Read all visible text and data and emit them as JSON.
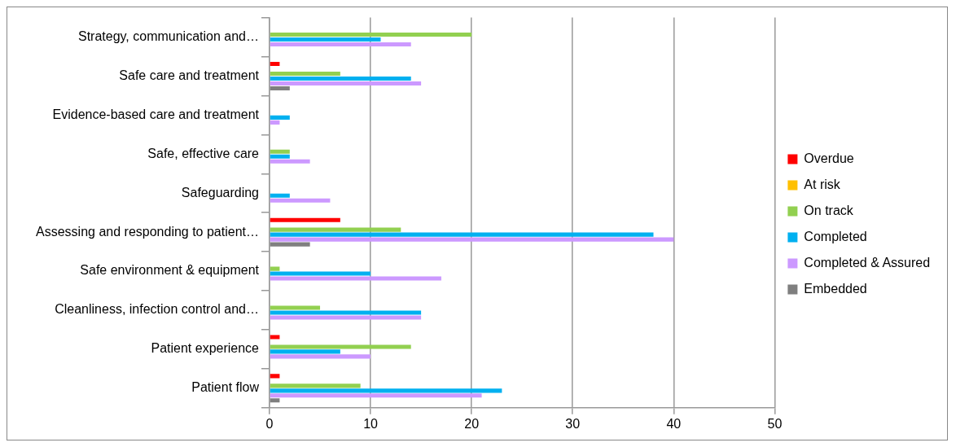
{
  "chart_data": {
    "type": "bar",
    "orientation": "horizontal",
    "categories": [
      "Strategy, communication and…",
      "Safe care and treatment",
      "Evidence-based care and treatment",
      "Safe, effective care",
      "Safeguarding",
      "Assessing and responding to patient…",
      "Safe environment & equipment",
      "Cleanliness, infection control and…",
      "Patient experience",
      "Patient flow"
    ],
    "series": [
      {
        "name": "Overdue",
        "color": "#ff0000",
        "values": [
          0,
          1,
          0,
          0,
          0,
          7,
          0,
          0,
          1,
          1
        ]
      },
      {
        "name": "At risk",
        "color": "#ffc000",
        "values": [
          0,
          0,
          0,
          0,
          0,
          0,
          0,
          0,
          0,
          0
        ]
      },
      {
        "name": "On track",
        "color": "#92d050",
        "values": [
          20,
          7,
          0,
          2,
          0,
          13,
          1,
          5,
          14,
          9
        ]
      },
      {
        "name": "Completed",
        "color": "#00b0f0",
        "values": [
          11,
          14,
          2,
          2,
          2,
          38,
          10,
          15,
          7,
          23
        ]
      },
      {
        "name": "Completed & Assured",
        "color": "#cc99ff",
        "values": [
          14,
          15,
          1,
          4,
          6,
          40,
          17,
          15,
          10,
          21
        ]
      },
      {
        "name": "Embedded",
        "color": "#7f7f7f",
        "values": [
          0,
          2,
          0,
          0,
          0,
          4,
          0,
          0,
          0,
          1
        ]
      }
    ],
    "xlim": [
      0,
      50
    ],
    "xticks": [
      0,
      10,
      20,
      30,
      40,
      50
    ],
    "grid": "x",
    "legend": "right"
  }
}
